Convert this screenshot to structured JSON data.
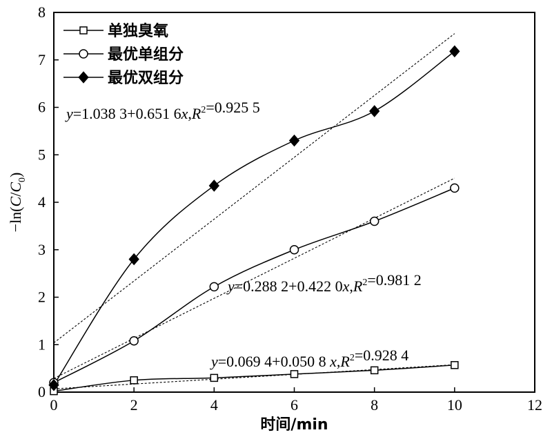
{
  "chart_data": {
    "type": "scatter",
    "xlabel": "时间/min",
    "ylabel": "−ln(C/C0)",
    "xlim": [
      0,
      12
    ],
    "ylim": [
      0,
      8
    ],
    "xticks": [
      0,
      2,
      4,
      6,
      8,
      10,
      12
    ],
    "yticks": [
      0,
      1,
      2,
      3,
      4,
      5,
      6,
      7,
      8
    ],
    "grid": false,
    "legend_position": "top-left",
    "x": [
      0,
      2,
      4,
      6,
      8,
      10
    ],
    "series": [
      {
        "name": "单独臭氧",
        "marker": "open-square",
        "values": [
          0.02,
          0.25,
          0.3,
          0.38,
          0.46,
          0.57
        ],
        "fit": {
          "intercept": 0.0694,
          "slope": 0.0508,
          "equation": "y=0.069 4+0.050 8 x,R²=0.928 4"
        }
      },
      {
        "name": "最优单组分",
        "marker": "open-circle",
        "values": [
          0.2,
          1.08,
          2.22,
          3.0,
          3.6,
          4.3
        ],
        "fit": {
          "intercept": 0.2882,
          "slope": 0.422,
          "equation": "y=0.288 2+0.422 0x,R²=0.981 2"
        }
      },
      {
        "name": "最优双组分",
        "marker": "filled-diamond",
        "values": [
          0.15,
          2.8,
          4.35,
          5.3,
          5.92,
          7.18
        ],
        "fit": {
          "intercept": 1.0383,
          "slope": 0.6516,
          "equation": "y=1.038 3+0.651 6x,R²=0.925 5"
        }
      }
    ]
  }
}
